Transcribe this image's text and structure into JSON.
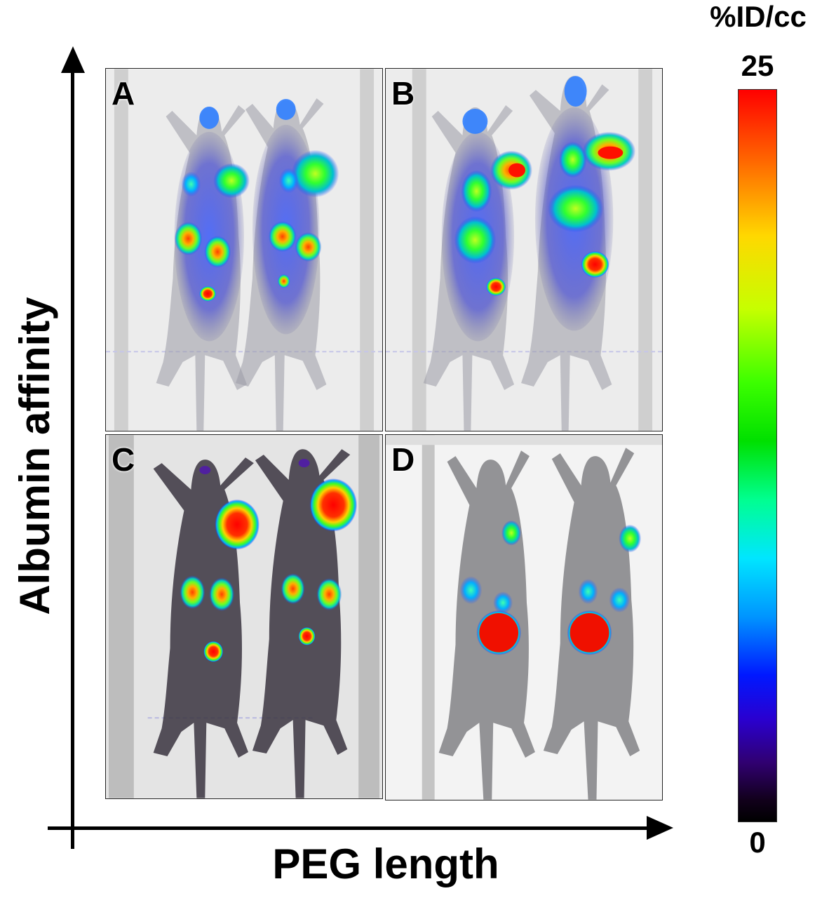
{
  "figure": {
    "y_axis_label": "Albumin affinity",
    "x_axis_label": "PEG length"
  },
  "panels": [
    {
      "letter": "A"
    },
    {
      "letter": "B"
    },
    {
      "letter": "C"
    },
    {
      "letter": "D"
    }
  ],
  "colorbar": {
    "unit": "%ID/cc",
    "max_label": "25",
    "min_label": "0",
    "colormap_top": "#ff0000",
    "colormap_bottom": "#000000"
  }
}
